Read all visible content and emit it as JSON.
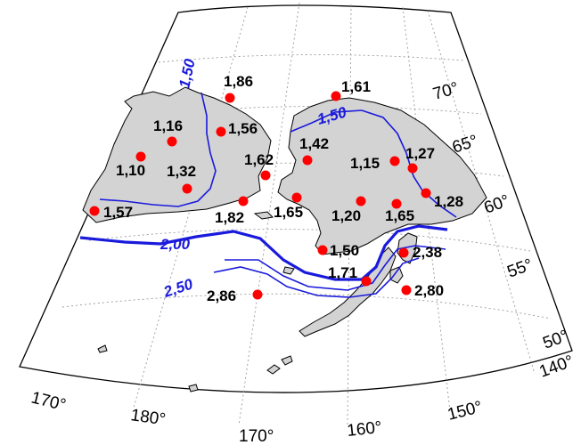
{
  "colors": {
    "land": "#d3d3d3",
    "coast": "#000000",
    "isoline": "#1a1adc",
    "station": "#ff0000",
    "grid": "#9a9a9a"
  },
  "longitude_labels": [
    "170°",
    "180°",
    "170°",
    "160°",
    "150°",
    "140°"
  ],
  "latitude_labels": [
    "70°",
    "65°",
    "60°",
    "55°",
    "50°"
  ],
  "isolines": [
    {
      "value": "1,50"
    },
    {
      "value": "1,50"
    },
    {
      "value": "2,00"
    },
    {
      "value": "2,50"
    }
  ],
  "stations": [
    {
      "value": "1,86"
    },
    {
      "value": "1,61"
    },
    {
      "value": "1,16"
    },
    {
      "value": "1,56"
    },
    {
      "value": "1,42"
    },
    {
      "value": "1,10"
    },
    {
      "value": "1,32"
    },
    {
      "value": "1,62"
    },
    {
      "value": "1,15"
    },
    {
      "value": "1,27"
    },
    {
      "value": "1,82"
    },
    {
      "value": "1,65"
    },
    {
      "value": "1,20"
    },
    {
      "value": "1,65"
    },
    {
      "value": "1,28"
    },
    {
      "value": "1,57"
    },
    {
      "value": "1,50"
    },
    {
      "value": "2,38"
    },
    {
      "value": "1,71"
    },
    {
      "value": "2,86"
    },
    {
      "value": "2,80"
    }
  ]
}
